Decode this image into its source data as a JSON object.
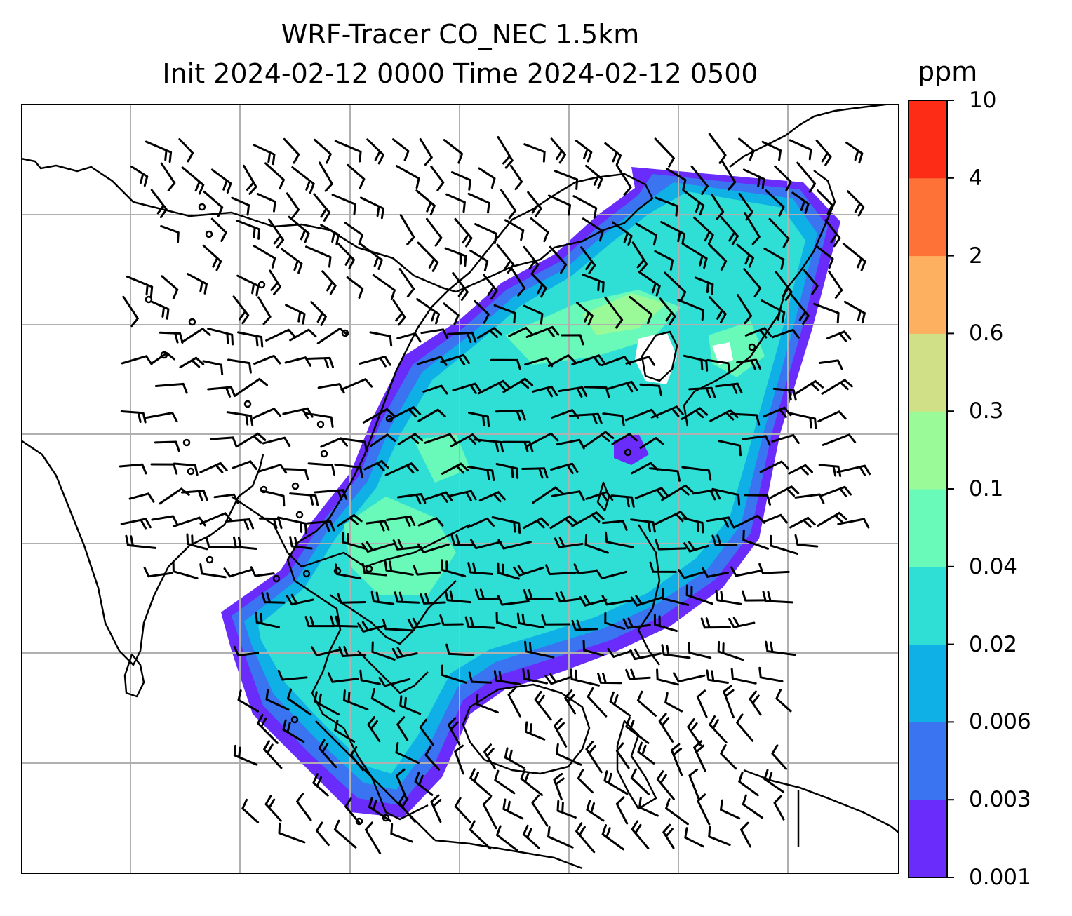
{
  "title": {
    "line1": "WRF-Tracer CO_NEC 1.5km",
    "line2": "Init 2024-02-12 0000 Time 2024-02-12 0500"
  },
  "colorbar": {
    "unit": "ppm",
    "levels": [
      "0.001",
      "0.003",
      "0.006",
      "0.02",
      "0.04",
      "0.1",
      "0.3",
      "0.6",
      "2",
      "4",
      "10"
    ],
    "colors": [
      "#6a2cfb",
      "#3a74f1",
      "#0eb0e6",
      "#2fdfd6",
      "#69f9b9",
      "#9bfa98",
      "#cfe086",
      "#fdb060",
      "#fe7137",
      "#fd2c17"
    ]
  },
  "map": {
    "gridlines": true,
    "land_outline_color": "#000000",
    "grid_color": "#b0b0b0"
  }
}
